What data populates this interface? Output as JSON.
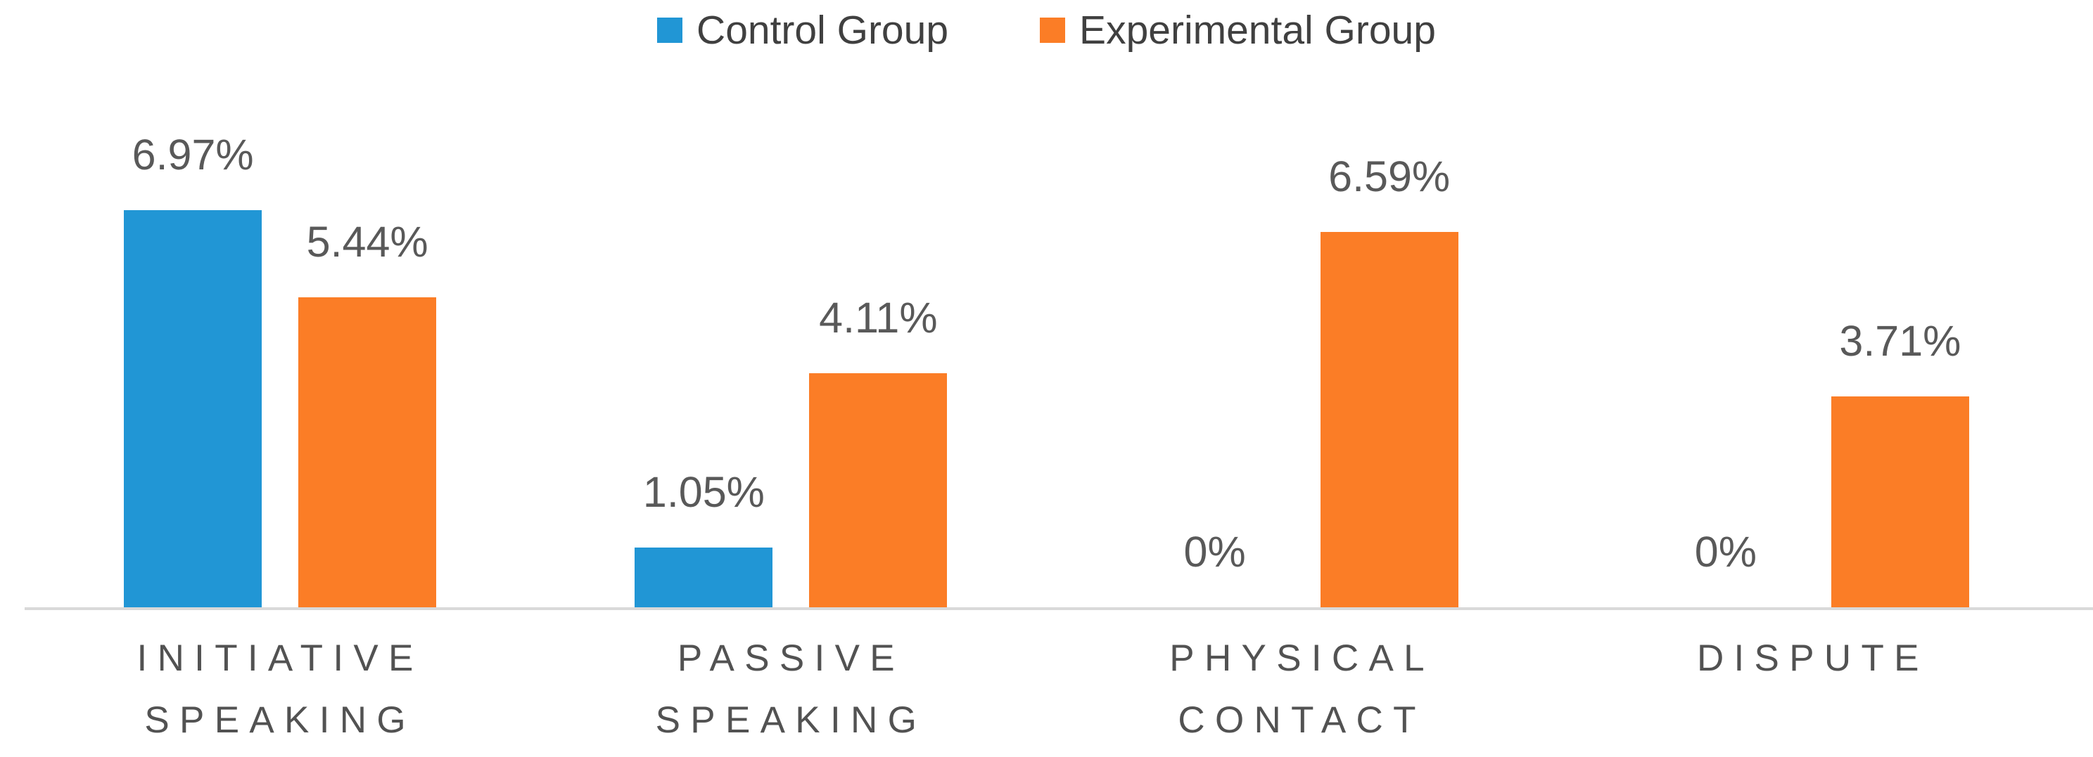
{
  "chart_data": {
    "type": "bar",
    "title": "",
    "xlabel": "",
    "ylabel": "",
    "categories": [
      "INITIATIVE SPEAKING",
      "PASSIVE SPEAKING",
      "PHYSICAL CONTACT",
      "DISPUTE"
    ],
    "series": [
      {
        "name": "Control Group",
        "color": "#2196D5",
        "values": [
          6.97,
          1.05,
          0,
          0
        ],
        "labels": [
          "6.97%",
          "1.05%",
          "0%",
          "0%"
        ]
      },
      {
        "name": "Experimental Group",
        "color": "#FB7D26",
        "values": [
          5.44,
          4.11,
          6.59,
          3.71
        ],
        "labels": [
          "5.44%",
          "4.11%",
          "6.59%",
          "3.71%"
        ]
      }
    ],
    "value_suffix": "%",
    "ylim": [
      0,
      8
    ],
    "grid": false,
    "legend_position": "top-center",
    "data_labels": "outside-end",
    "colors": {
      "axis_line": "#D9D9D9",
      "data_label_text": "#595959",
      "category_label_text": "#525252",
      "legend_text": "#404040"
    }
  }
}
